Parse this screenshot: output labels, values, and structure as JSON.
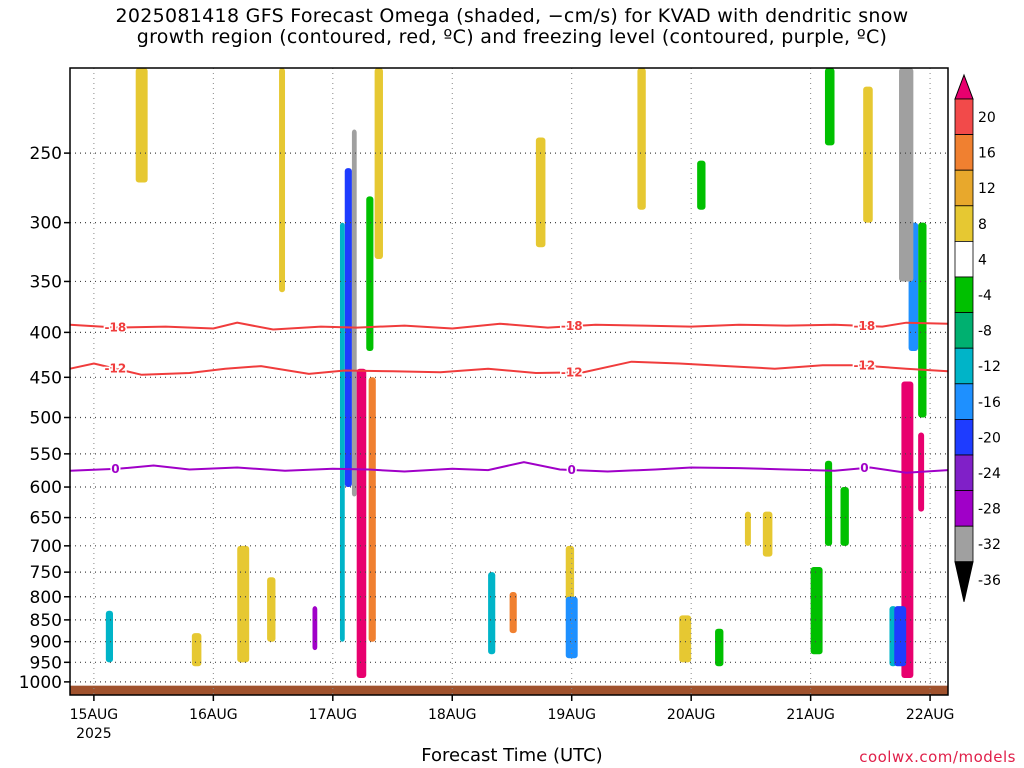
{
  "title": {
    "line1": "2025081418 GFS Forecast Omega (shaded, −cm/s) for KVAD with dendritic snow",
    "line2": "growth region (contoured, red, ºC) and freezing level (contoured, purple, ºC)"
  },
  "xlabel": "Forecast Time (UTC)",
  "credit": "coolwx.com/models",
  "chart_data": {
    "type": "heatmap",
    "title": "2025081418 GFS Forecast Omega (shaded, −cm/s) for KVAD with dendritic snow growth region (contoured, red, ºC) and freezing level (contoured, purple, ºC)",
    "xlabel": "Forecast Time (UTC)",
    "ylabel": "",
    "y_axis": {
      "scale": "log",
      "reversed": true,
      "ticks": [
        250,
        300,
        350,
        400,
        450,
        500,
        550,
        600,
        650,
        700,
        750,
        800,
        850,
        900,
        950,
        1000
      ],
      "range": [
        200,
        1035
      ]
    },
    "x_axis": {
      "ticks": [
        "15AUG",
        "16AUG",
        "17AUG",
        "18AUG",
        "19AUG",
        "20AUG",
        "21AUG",
        "22AUG"
      ],
      "first_tick_sublabel": "2025",
      "range_days": [
        -0.2,
        7.15
      ]
    },
    "grid": true,
    "colorbar": {
      "labels": [
        "20",
        "16",
        "12",
        "8",
        "4",
        "-4",
        "-8",
        "-12",
        "-16",
        "-20",
        "-24",
        "-28",
        "-32",
        "-36"
      ],
      "colors": [
        "#e8006e",
        "#f24a4a",
        "#f08030",
        "#e8a82c",
        "#e6c832",
        "#ffffff",
        "#00c000",
        "#00b070",
        "#00b4c8",
        "#1e90ff",
        "#1e3cff",
        "#8020c8",
        "#a000c8",
        "#a0a0a0",
        "#000000"
      ],
      "thresholds": [
        -36,
        -32,
        -28,
        -24,
        -20,
        -16,
        -12,
        -8,
        -4,
        4,
        8,
        12,
        16,
        20
      ]
    },
    "series": [
      {
        "name": "-18",
        "color": "#f03c3c",
        "x": [
          -0.2,
          0.2,
          0.6,
          1.0,
          1.2,
          1.5,
          1.9,
          2.2,
          2.6,
          3.0,
          3.4,
          3.8,
          4.2,
          4.6,
          5.0,
          5.4,
          5.8,
          6.2,
          6.6,
          6.8,
          7.15
        ],
        "y": [
          392,
          395,
          394,
          396,
          390,
          397,
          394,
          395,
          393,
          396,
          391,
          395,
          392,
          393,
          394,
          392,
          393,
          392,
          394,
          390,
          391
        ]
      },
      {
        "name": "-12",
        "color": "#f03c3c",
        "x": [
          -0.2,
          0.0,
          0.4,
          0.8,
          1.1,
          1.4,
          1.8,
          2.1,
          2.5,
          2.9,
          3.3,
          3.7,
          4.1,
          4.5,
          4.9,
          5.3,
          5.7,
          6.1,
          6.4,
          6.8,
          7.15
        ],
        "y": [
          440,
          434,
          447,
          445,
          440,
          437,
          446,
          442,
          443,
          444,
          440,
          445,
          444,
          432,
          434,
          437,
          440,
          436,
          436,
          440,
          443
        ]
      },
      {
        "name": "0",
        "color": "#a000c8",
        "x": [
          -0.2,
          0.2,
          0.5,
          0.8,
          1.2,
          1.6,
          2.0,
          2.3,
          2.6,
          3.0,
          3.3,
          3.6,
          3.9,
          4.3,
          4.7,
          5.0,
          5.4,
          5.8,
          6.2,
          6.5,
          6.8,
          7.15
        ],
        "y": [
          575,
          572,
          567,
          573,
          570,
          575,
          572,
          573,
          576,
          572,
          574,
          562,
          573,
          576,
          573,
          570,
          571,
          573,
          575,
          570,
          578,
          574
        ]
      }
    ],
    "shaded_features": [
      {
        "omega": -36,
        "t_start": 2.16,
        "t_end": 2.2,
        "p_top": 235,
        "p_bot": 615
      },
      {
        "omega": -36,
        "t_start": 6.74,
        "t_end": 6.86,
        "p_top": 200,
        "p_bot": 350
      },
      {
        "omega": 20,
        "t_start": 2.2,
        "t_end": 2.28,
        "p_top": 440,
        "p_bot": 990
      },
      {
        "omega": 20,
        "t_start": 6.76,
        "t_end": 6.86,
        "p_top": 455,
        "p_bot": 990
      },
      {
        "omega": -32,
        "t_start": 1.83,
        "t_end": 1.87,
        "p_top": 820,
        "p_bot": 920
      },
      {
        "omega": -20,
        "t_start": 3.95,
        "t_end": 4.05,
        "p_top": 800,
        "p_bot": 940
      },
      {
        "omega": -24,
        "t_start": 6.7,
        "t_end": 6.8,
        "p_top": 820,
        "p_bot": 960
      }
    ],
    "terrain_surface_hPa": 1010
  }
}
